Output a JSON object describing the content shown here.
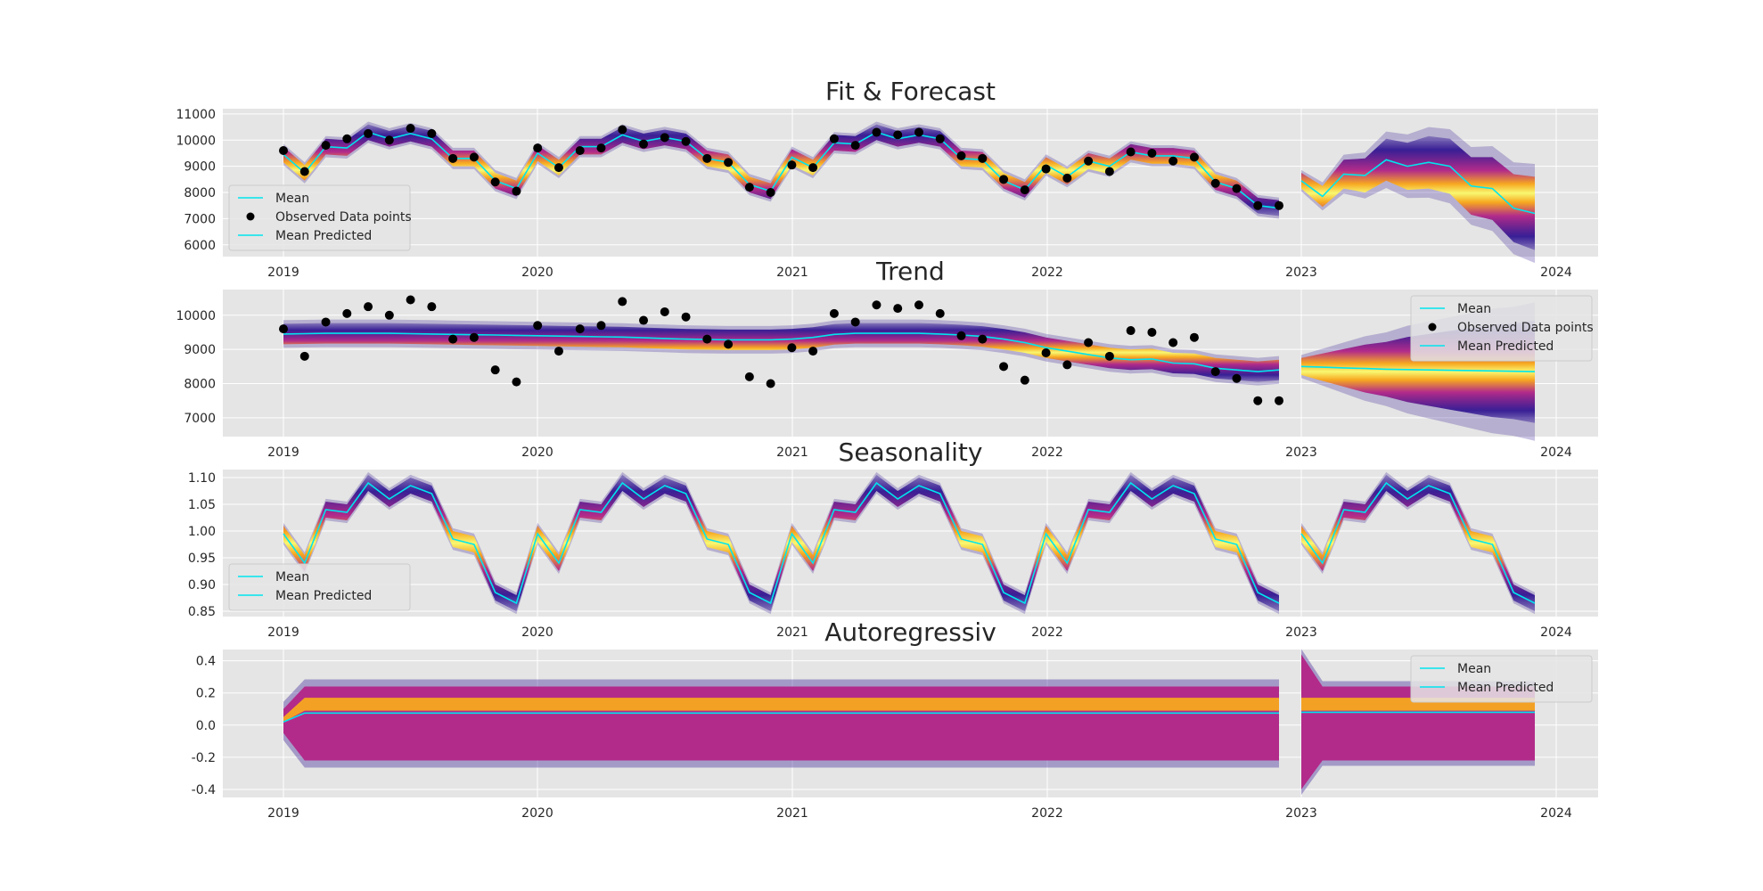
{
  "colors": {
    "mean_line": "#00e5ee",
    "observed": "#000000",
    "axes_bg": "#e5e5e5",
    "grid": "#ffffff",
    "band_outer": "#2b0f8f",
    "band_mid": "#b22b8a",
    "band_inner": "#f7a820",
    "band_core": "#f9f871"
  },
  "chart_data": [
    {
      "type": "line",
      "title": "Fit & Forecast",
      "x_ticks": [
        "2019",
        "2020",
        "2021",
        "2022",
        "2023",
        "2024"
      ],
      "y_ticks": [
        "6000",
        "7000",
        "8000",
        "9000",
        "10000",
        "11000"
      ],
      "ylim": [
        5550,
        11200
      ],
      "legend": {
        "placement": "lower-left",
        "entries": [
          "Mean",
          "Observed Data points",
          "Mean Predicted"
        ]
      },
      "fit_mean": [
        9450,
        8750,
        9750,
        9700,
        10300,
        10050,
        10250,
        10050,
        9300,
        9300,
        8450,
        8150,
        9500,
        8950,
        9750,
        9750,
        10200,
        9950,
        10100,
        9950,
        9300,
        9150,
        8300,
        8050,
        9350,
        8950,
        9900,
        9850,
        10300,
        10050,
        10200,
        10050,
        9300,
        9250,
        8450,
        8100,
        9050,
        8600,
        9200,
        9000,
        9550,
        9400,
        9400,
        9300,
        8400,
        8150,
        7500,
        7400
      ],
      "fit_band": 300,
      "forecast_mean": [
        8450,
        7850,
        8700,
        8650,
        9250,
        9000,
        9150,
        9000,
        8250,
        8150,
        7400,
        7200
      ],
      "forecast_band": [
        300,
        400,
        550,
        650,
        800,
        900,
        1000,
        1050,
        1100,
        1200,
        1300,
        1400
      ],
      "observed": [
        9600,
        8800,
        9800,
        10050,
        10250,
        10000,
        10450,
        10250,
        9300,
        9350,
        8400,
        8050,
        9700,
        8950,
        9600,
        9700,
        10400,
        9850,
        10100,
        9950,
        9300,
        9150,
        8200,
        8000,
        9050,
        8950,
        10050,
        9800,
        10300,
        10200,
        10300,
        10050,
        9400,
        9300,
        8500,
        8100,
        8900,
        8550,
        9200,
        8800,
        9550,
        9500,
        9200,
        9350,
        8350,
        8150,
        7500,
        7500
      ]
    },
    {
      "type": "line",
      "title": "Trend",
      "x_ticks": [
        "2019",
        "2020",
        "2021",
        "2022",
        "2023",
        "2024"
      ],
      "y_ticks": [
        "7000",
        "8000",
        "9000",
        "10000"
      ],
      "ylim": [
        6450,
        10750
      ],
      "legend": {
        "placement": "upper-right",
        "entries": [
          "Mean",
          "Observed Data points",
          "Mean Predicted"
        ]
      },
      "fit_mean": [
        9450,
        9460,
        9470,
        9470,
        9470,
        9470,
        9460,
        9450,
        9440,
        9430,
        9420,
        9410,
        9400,
        9390,
        9380,
        9370,
        9360,
        9340,
        9320,
        9300,
        9290,
        9280,
        9280,
        9280,
        9300,
        9350,
        9440,
        9470,
        9470,
        9470,
        9470,
        9450,
        9420,
        9380,
        9300,
        9200,
        9050,
        8950,
        8850,
        8750,
        8700,
        8720,
        8600,
        8580,
        8450,
        8400,
        8350,
        8400
      ],
      "fit_band": 300,
      "forecast_mean": [
        8500,
        8480,
        8460,
        8440,
        8420,
        8410,
        8400,
        8390,
        8380,
        8370,
        8360,
        8350
      ],
      "forecast_band": [
        250,
        400,
        550,
        700,
        800,
        950,
        1050,
        1150,
        1250,
        1350,
        1400,
        1500
      ],
      "observed": [
        9600,
        8800,
        9800,
        10050,
        10250,
        10000,
        10450,
        10250,
        9300,
        9350,
        8400,
        8050,
        9700,
        8950,
        9600,
        9700,
        10400,
        9850,
        10100,
        9950,
        9300,
        9150,
        8200,
        8000,
        9050,
        8950,
        10050,
        9800,
        10300,
        10200,
        10300,
        10050,
        9400,
        9300,
        8500,
        8100,
        8900,
        8550,
        9200,
        8800,
        9550,
        9500,
        9200,
        9350,
        8350,
        8150,
        7500,
        7500
      ]
    },
    {
      "type": "line",
      "title": "Seasonality",
      "x_ticks": [
        "2019",
        "2020",
        "2021",
        "2022",
        "2023",
        "2024"
      ],
      "y_ticks": [
        "0.85",
        "0.90",
        "0.95",
        "1.00",
        "1.05",
        "1.10"
      ],
      "ylim": [
        0.84,
        1.115
      ],
      "legend": {
        "placement": "lower-left",
        "entries": [
          "Mean",
          "Mean Predicted"
        ]
      },
      "pattern": [
        0.995,
        0.94,
        1.04,
        1.035,
        1.09,
        1.06,
        1.085,
        1.07,
        0.985,
        0.975,
        0.885,
        0.865
      ],
      "fit_band": 0.015,
      "forecast_band": 0.015
    },
    {
      "type": "line",
      "title": "Autoregressiv",
      "x_ticks": [
        "2019",
        "2020",
        "2021",
        "2022",
        "2023",
        "2024"
      ],
      "y_ticks": [
        "-0.4",
        "-0.2",
        "0.0",
        "0.2",
        "0.4"
      ],
      "ylim": [
        -0.45,
        0.47
      ],
      "legend": {
        "placement": "upper-right",
        "entries": [
          "Mean",
          "Mean Predicted"
        ]
      },
      "fit_mean_start": 0.02,
      "fit_mean": 0.075,
      "fit_upper": 0.24,
      "fit_lower": -0.22,
      "forecast_mean": 0.08,
      "forecast_upper": 0.24,
      "forecast_lower": -0.22
    }
  ]
}
